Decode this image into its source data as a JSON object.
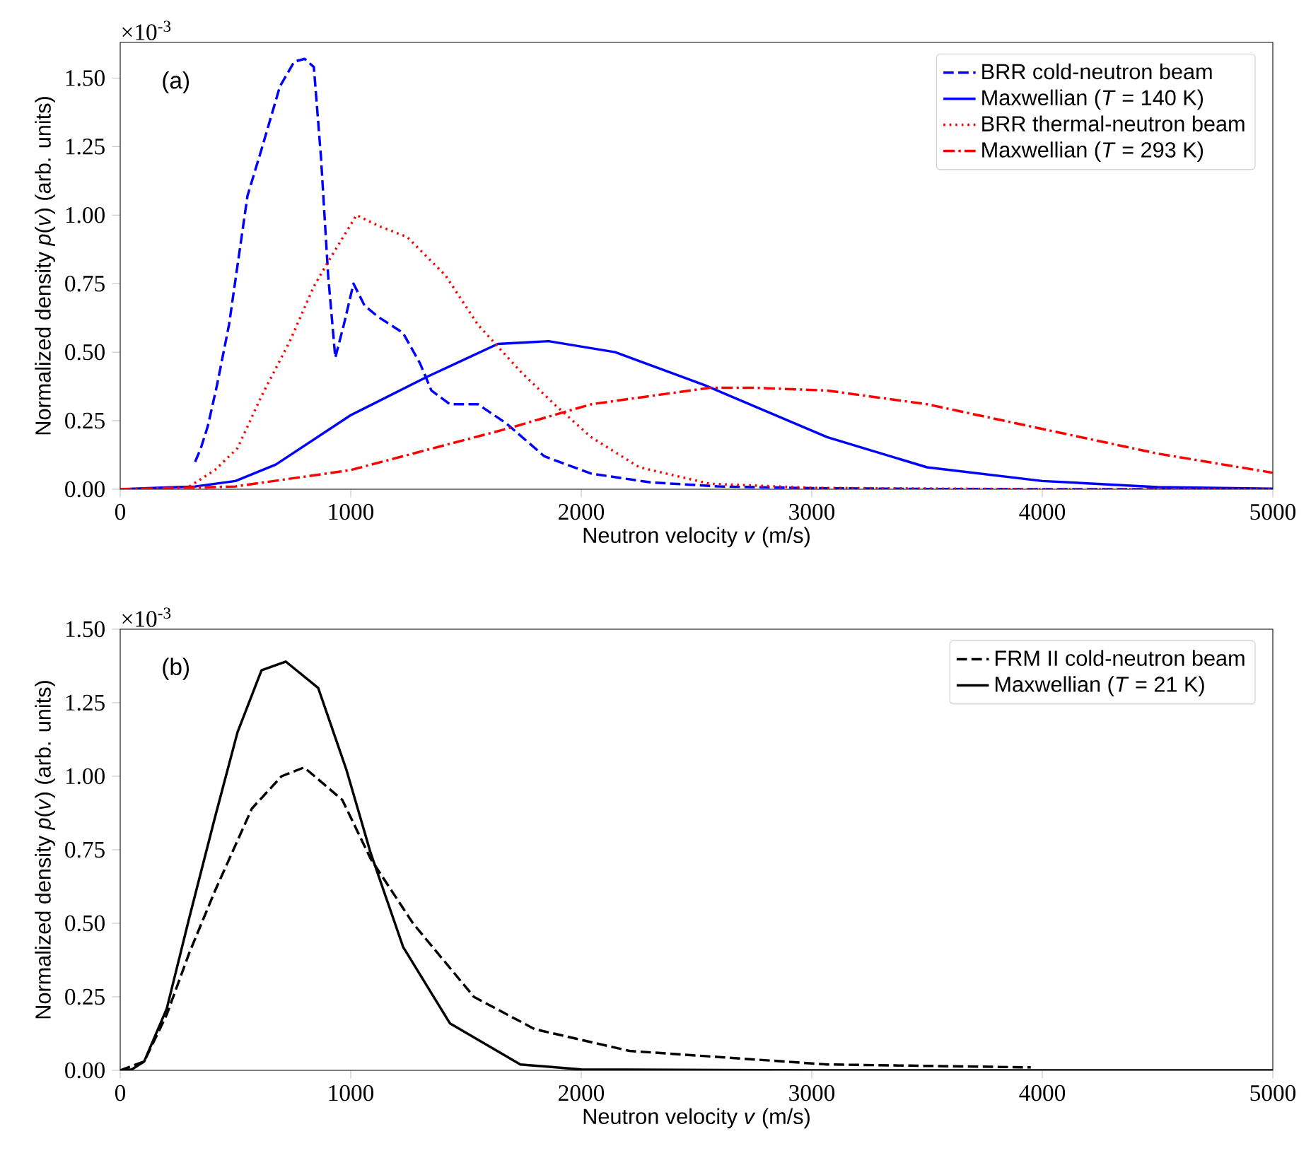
{
  "chart_data": [
    {
      "type": "line",
      "xlabel": "Neutron velocity *v* (m/s)",
      "ylabel": "Normalized density *p*(*v*) (arb. units)",
      "xlim": [
        0,
        5000
      ],
      "xticks": [
        0,
        1000,
        2000,
        3000,
        4000,
        5000
      ],
      "ylim": [
        0,
        1.63
      ],
      "yticks": [
        {
          "value": 0,
          "label": "0.00"
        },
        {
          "value": 0.25,
          "label": "0.25"
        },
        {
          "value": 0.5,
          "label": "0.50"
        },
        {
          "value": 0.75,
          "label": "0.75"
        },
        {
          "value": 1.0,
          "label": "1.00"
        },
        {
          "value": 1.25,
          "label": "1.25"
        },
        {
          "value": 1.5,
          "label": "1.50"
        }
      ],
      "legend": "top right",
      "annotations": [
        "(a)",
        "×10$^{-3}$"
      ],
      "series": [
        {
          "name": "BRR cold-neutron beam",
          "color": "#0000ff",
          "line_style": "dashed",
          "x": [
            325,
            350,
            380,
            420,
            472,
            552,
            613,
            693,
            755,
            800,
            840,
            871,
            902,
            933,
            970,
            1012,
            1060,
            1117,
            1227,
            1300,
            1350,
            1430,
            1552,
            1675,
            1840,
            2043,
            2300,
            2600,
            3000,
            3500,
            4000,
            5000
          ],
          "values": [
            0.1,
            0.15,
            0.23,
            0.38,
            0.6,
            1.07,
            1.24,
            1.47,
            1.56,
            1.57,
            1.54,
            1.21,
            0.78,
            0.48,
            0.6,
            0.75,
            0.67,
            0.63,
            0.57,
            0.46,
            0.36,
            0.31,
            0.31,
            0.24,
            0.12,
            0.057,
            0.025,
            0.01,
            0.004,
            0.001,
            0,
            0
          ]
        },
        {
          "name": "Maxwellian (*T* = 140 K)",
          "color": "#0000ff",
          "line_style": "solid",
          "x": [
            0,
            325,
            500,
            675,
            1000,
            1331,
            1638,
            1859,
            2147,
            2534,
            3067,
            3500,
            4000,
            4500,
            5000
          ],
          "values": [
            0,
            0.01,
            0.03,
            0.09,
            0.27,
            0.41,
            0.53,
            0.54,
            0.5,
            0.38,
            0.19,
            0.08,
            0.03,
            0.008,
            0.002
          ]
        },
        {
          "name": "BRR thermal-neutron beam",
          "color": "#ff0000",
          "line_style": "dotted",
          "x": [
            300,
            411,
            509,
            613,
            736,
            840,
            902,
            1025,
            1123,
            1245,
            1411,
            1552,
            1736,
            1883,
            2043,
            2252,
            2558,
            3000,
            4000,
            5000
          ],
          "values": [
            0.01,
            0.07,
            0.15,
            0.34,
            0.54,
            0.74,
            0.83,
            1.0,
            0.96,
            0.92,
            0.78,
            0.6,
            0.43,
            0.31,
            0.19,
            0.08,
            0.02,
            0.005,
            0,
            0
          ]
        },
        {
          "name": "Maxwellian (*T* = 293 K)",
          "color": "#ff0000",
          "line_style": "dashdot",
          "x": [
            0,
            500,
            1000,
            1675,
            2043,
            2558,
            2750,
            3067,
            3500,
            4000,
            4500,
            5000
          ],
          "values": [
            0,
            0.01,
            0.07,
            0.22,
            0.31,
            0.37,
            0.37,
            0.36,
            0.31,
            0.22,
            0.13,
            0.06
          ]
        }
      ]
    },
    {
      "type": "line",
      "xlabel": "Neutron velocity *v* (m/s)",
      "ylabel": "Normalized density *p*(*v*) (arb. units)",
      "xlim": [
        0,
        5000
      ],
      "xticks": [
        0,
        1000,
        2000,
        3000,
        4000,
        5000
      ],
      "ylim": [
        0,
        1.5
      ],
      "yticks": [
        {
          "value": 0,
          "label": "0.00"
        },
        {
          "value": 0.25,
          "label": "0.25"
        },
        {
          "value": 0.5,
          "label": "0.50"
        },
        {
          "value": 0.75,
          "label": "0.75"
        },
        {
          "value": 1.0,
          "label": "1.00"
        },
        {
          "value": 1.25,
          "label": "1.25"
        },
        {
          "value": 1.5,
          "label": "1.50"
        }
      ],
      "legend": "top right",
      "annotations": [
        "(b)",
        "×10$^{-3}$"
      ],
      "series": [
        {
          "name": "FRM II cold-neutron beam",
          "color": "#000000",
          "line_style": "dashed",
          "x": [
            0,
            104,
            202,
            300,
            411,
            571,
            700,
            798,
            963,
            1086,
            1270,
            1534,
            1798,
            2209,
            3067,
            3950
          ],
          "values": [
            0,
            0.03,
            0.19,
            0.4,
            0.61,
            0.89,
            1.0,
            1.03,
            0.92,
            0.72,
            0.5,
            0.25,
            0.14,
            0.066,
            0.02,
            0.01
          ]
        },
        {
          "name": "Maxwellian (*T* = 21 K)",
          "color": "#000000",
          "line_style": "solid",
          "x": [
            0,
            50,
            104,
            202,
            300,
            411,
            509,
            613,
            718,
            859,
            982,
            1086,
            1227,
            1430,
            1736,
            2000,
            3000,
            5000
          ],
          "values": [
            0,
            0.003,
            0.03,
            0.21,
            0.52,
            0.86,
            1.15,
            1.36,
            1.39,
            1.3,
            1.02,
            0.74,
            0.42,
            0.16,
            0.02,
            0.003,
            0,
            0
          ]
        }
      ]
    }
  ]
}
